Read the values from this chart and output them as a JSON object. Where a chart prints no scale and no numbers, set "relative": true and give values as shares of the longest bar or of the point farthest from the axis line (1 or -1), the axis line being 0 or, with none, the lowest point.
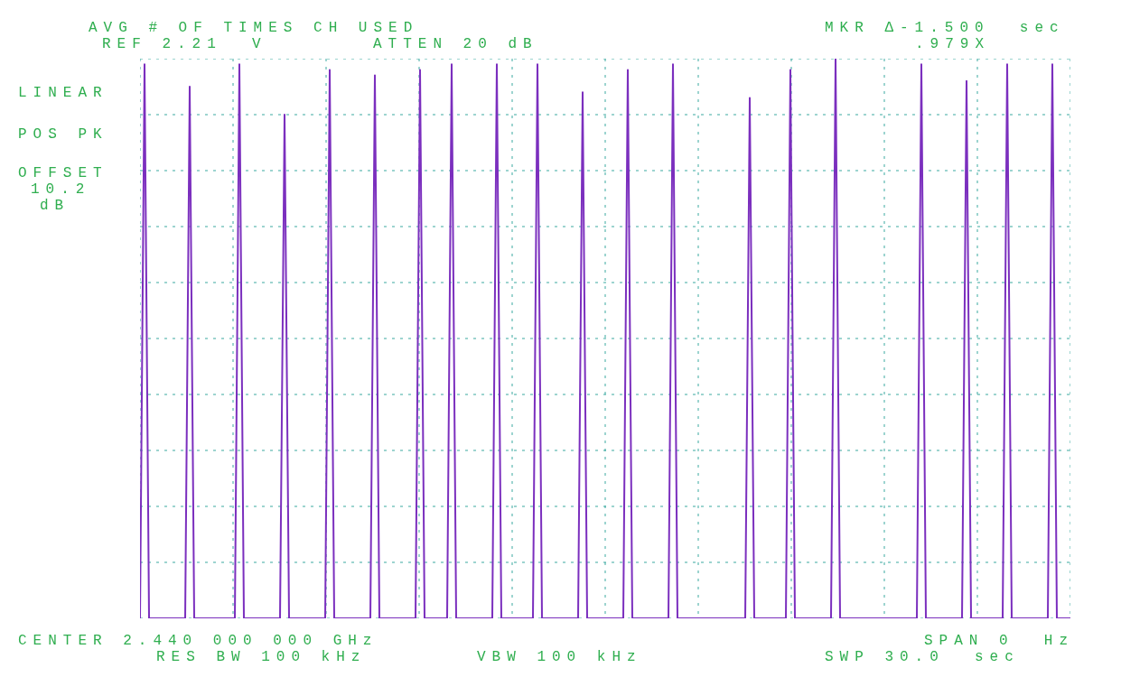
{
  "chart_data": {
    "type": "line",
    "title": "AVG # OF TIMES CH USED",
    "relative": true,
    "grid": true,
    "marker": "none",
    "line_style": "solid",
    "annotations": [
      "REF 2.21  V",
      "ATTEN 20 dB",
      "MKR Δ-1.500  sec",
      ".979X",
      "LINEAR",
      "POS PK",
      "OFFSET",
      "10.2",
      "dB",
      "CENTER 2.440 000 000 GHz",
      "SPAN 0  Hz",
      "RES BW 100 kHz",
      "VBW 100 kHz",
      "SWP 30.0  sec"
    ],
    "categories": [
      null,
      null,
      null,
      null,
      null,
      null,
      null,
      null,
      null,
      null,
      null,
      null,
      null,
      null,
      null,
      null,
      null,
      null,
      null,
      null,
      null,
      null,
      null,
      null,
      null,
      null,
      null,
      null,
      null,
      null,
      null,
      null,
      null,
      null,
      null,
      null,
      null,
      null,
      null,
      null,
      null,
      null,
      null,
      null,
      null,
      null,
      null,
      null,
      null,
      null,
      null,
      null,
      null,
      null,
      null,
      null,
      null,
      null,
      null,
      null,
      null,
      null,
      null,
      null,
      null,
      null,
      null,
      null,
      null,
      null,
      null,
      null,
      null,
      null,
      null,
      null,
      null,
      null,
      null,
      null,
      null,
      null,
      null,
      null,
      null,
      null,
      null,
      null,
      null,
      null,
      null,
      null,
      null,
      null,
      null,
      null,
      null,
      null,
      null,
      null,
      null,
      null,
      null,
      null,
      null,
      null,
      null,
      null,
      null,
      null,
      null,
      null,
      null,
      null,
      null,
      null,
      null,
      null,
      null,
      null,
      null,
      null,
      null,
      null,
      null,
      null,
      null,
      null,
      null,
      null,
      null,
      null,
      null,
      null,
      null,
      null,
      null,
      null,
      null,
      null,
      null,
      null,
      null,
      null,
      null,
      null,
      null,
      null,
      null,
      null,
      null,
      null,
      null,
      null,
      null,
      null,
      null,
      null,
      null,
      null,
      null,
      null,
      null,
      null,
      null,
      null,
      null,
      null,
      null,
      null,
      null,
      null,
      null,
      null,
      null,
      null,
      null,
      null,
      null,
      null,
      null,
      null,
      null,
      null,
      null,
      null,
      null,
      null,
      null,
      null,
      null,
      null,
      null,
      null,
      null,
      null,
      null,
      null,
      null,
      null,
      null,
      null,
      null,
      null,
      null,
      null,
      null
    ],
    "series": [
      {
        "color": "#7b2fbe",
        "values": [
          0,
          0.99,
          0,
          0,
          0,
          0,
          0,
          0,
          0,
          0,
          0,
          0.95,
          0,
          0,
          0,
          0,
          0,
          0,
          0,
          0,
          0,
          0,
          0.99,
          0,
          0,
          0,
          0,
          0,
          0,
          0,
          0,
          0,
          0.9,
          0,
          0,
          0,
          0,
          0,
          0,
          0,
          0,
          0,
          0.98,
          0,
          0,
          0,
          0,
          0,
          0,
          0,
          0,
          0,
          0.97,
          0,
          0,
          0,
          0,
          0,
          0,
          0,
          0,
          0,
          0.98,
          0,
          0,
          0,
          0,
          0,
          0,
          0.99,
          0,
          0,
          0,
          0,
          0,
          0,
          0,
          0,
          0,
          0.99,
          0,
          0,
          0,
          0,
          0,
          0,
          0,
          0,
          0.99,
          0,
          0,
          0,
          0,
          0,
          0,
          0,
          0,
          0,
          0.94,
          0,
          0,
          0,
          0,
          0,
          0,
          0,
          0,
          0,
          0.98,
          0,
          0,
          0,
          0,
          0,
          0,
          0,
          0,
          0,
          0.99,
          0,
          0,
          0,
          0,
          0,
          0,
          0,
          0,
          0,
          0,
          0,
          0,
          0,
          0,
          0,
          0,
          0.93,
          0,
          0,
          0,
          0,
          0,
          0,
          0,
          0,
          0.98,
          0,
          0,
          0,
          0,
          0,
          0,
          0,
          0,
          0,
          1,
          0,
          0,
          0,
          0,
          0,
          0,
          0,
          0,
          0,
          0,
          0,
          0,
          0,
          0,
          0,
          0,
          0,
          0,
          0.99,
          0,
          0,
          0,
          0,
          0,
          0,
          0,
          0,
          0,
          0.96,
          0,
          0,
          0,
          0,
          0,
          0,
          0,
          0,
          0.99,
          0,
          0,
          0,
          0,
          0,
          0,
          0,
          0,
          0,
          0.99,
          0,
          0,
          0,
          0
        ]
      }
    ]
  }
}
